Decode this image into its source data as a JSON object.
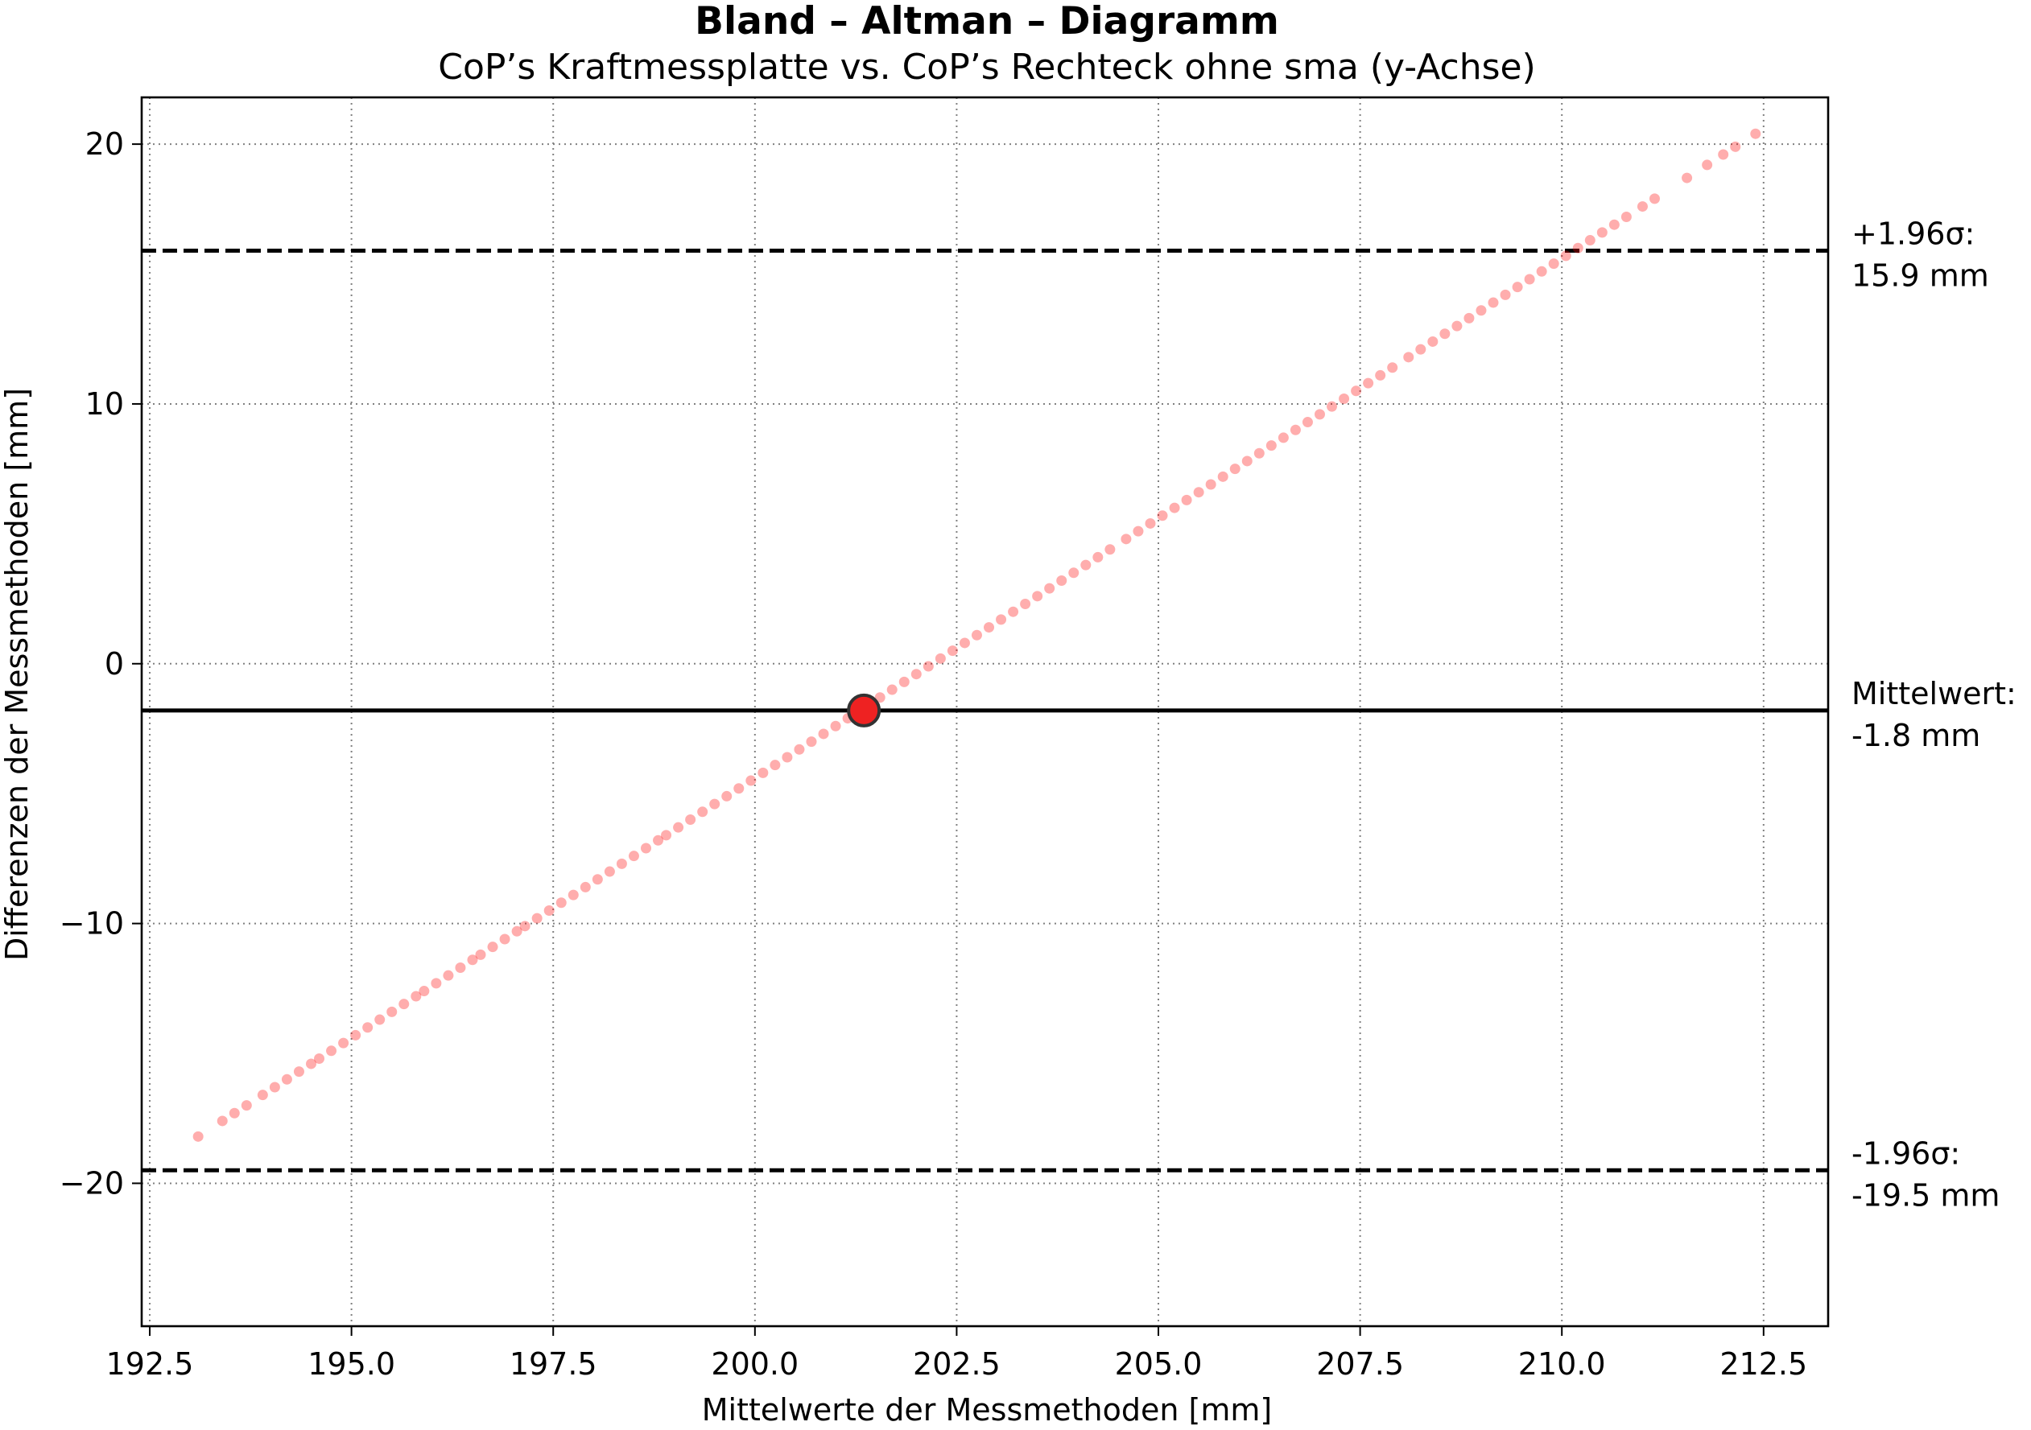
{
  "chart_data": {
    "type": "scatter",
    "title": "Bland – Altman – Diagramm",
    "subtitle": "CoP’s Kraftmessplatte vs. CoP’s Rechteck ohne sma (y-Achse)",
    "xlabel": "Mittelwerte der Messmethoden [mm]",
    "ylabel": "Differenzen der Messmethoden [mm]",
    "xlim": [
      192.4,
      213.3
    ],
    "ylim": [
      -25.5,
      21.8
    ],
    "xticks": [
      192.5,
      195.0,
      197.5,
      200.0,
      202.5,
      205.0,
      207.5,
      210.0,
      212.5
    ],
    "xtick_labels": [
      "192.5",
      "195.0",
      "197.5",
      "200.0",
      "202.5",
      "205.0",
      "207.5",
      "210.0",
      "212.5"
    ],
    "yticks": [
      -20,
      -10,
      0,
      10,
      20
    ],
    "ytick_labels": [
      "−20",
      "−10",
      "0",
      "10",
      "20"
    ],
    "grid": true,
    "grid_style": "dotted",
    "point_color": "#ff0000",
    "line": {
      "x_start": 193.1,
      "x_end": 212.4,
      "y_start": -18.2,
      "y_end": 20.4
    },
    "point_xs": [
      193.1,
      193.4,
      193.55,
      193.7,
      193.9,
      194.05,
      194.2,
      194.35,
      194.5,
      194.6,
      194.75,
      194.9,
      195.05,
      195.2,
      195.35,
      195.5,
      195.65,
      195.8,
      195.9,
      196.05,
      196.2,
      196.35,
      196.5,
      196.6,
      196.75,
      196.9,
      197.05,
      197.15,
      197.3,
      197.45,
      197.6,
      197.75,
      197.9,
      198.05,
      198.2,
      198.35,
      198.5,
      198.65,
      198.8,
      198.9,
      199.05,
      199.2,
      199.35,
      199.5,
      199.65,
      199.8,
      199.95,
      200.1,
      200.25,
      200.4,
      200.55,
      200.7,
      200.85,
      201.0,
      201.15,
      201.3,
      201.55,
      201.7,
      201.85,
      202.0,
      202.15,
      202.3,
      202.45,
      202.6,
      202.75,
      202.9,
      203.05,
      203.2,
      203.35,
      203.5,
      203.65,
      203.8,
      203.95,
      204.1,
      204.25,
      204.4,
      204.6,
      204.75,
      204.9,
      205.05,
      205.2,
      205.35,
      205.5,
      205.65,
      205.8,
      205.95,
      206.1,
      206.25,
      206.4,
      206.55,
      206.7,
      206.85,
      207.0,
      207.15,
      207.3,
      207.45,
      207.6,
      207.75,
      207.9,
      208.1,
      208.25,
      208.4,
      208.55,
      208.7,
      208.85,
      209.0,
      209.15,
      209.3,
      209.45,
      209.6,
      209.75,
      209.9,
      210.05,
      210.2,
      210.35,
      210.5,
      210.65,
      210.8,
      211.0,
      211.15,
      211.55,
      211.8,
      212.0,
      212.15,
      212.4
    ],
    "mean_point": {
      "x": 201.35,
      "y": -1.8
    },
    "mean_diff": -1.8,
    "upper_loa": 15.9,
    "lower_loa": -19.5,
    "annotations": {
      "upper_line1": "+1.96σ:",
      "upper_line2": "15.9 mm",
      "mean_line1": "Mittelwert:",
      "mean_line2": "-1.8 mm",
      "lower_line1": "-1.96σ:",
      "lower_line2": "-19.5 mm"
    }
  }
}
